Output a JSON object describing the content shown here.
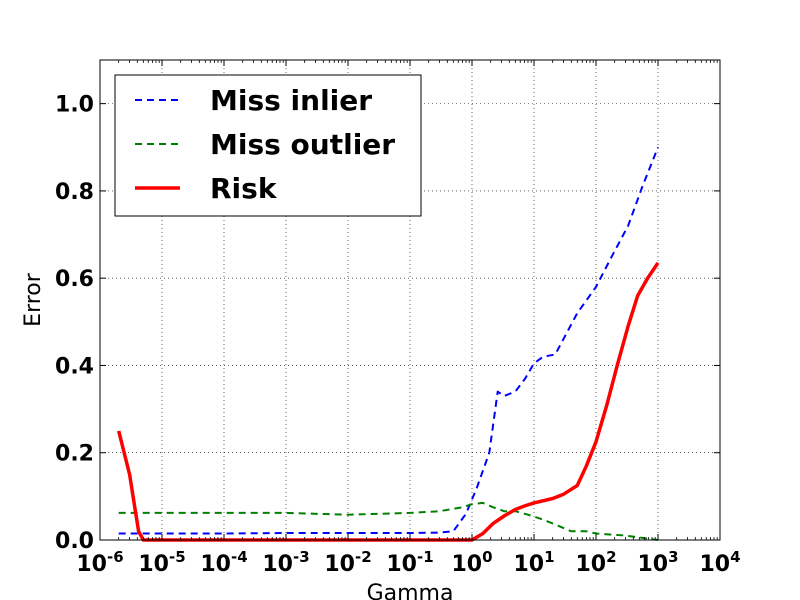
{
  "chart_data": {
    "type": "line",
    "title": "",
    "xlabel": "Gamma",
    "ylabel": "Error",
    "xscale": "log",
    "xlim": [
      1e-06,
      10000.0
    ],
    "ylim": [
      0.0,
      1.1
    ],
    "x_ticks": [
      {
        "base": "10",
        "exp": "-6",
        "value": 1e-06
      },
      {
        "base": "10",
        "exp": "-5",
        "value": 1e-05
      },
      {
        "base": "10",
        "exp": "-4",
        "value": 0.0001
      },
      {
        "base": "10",
        "exp": "-3",
        "value": 0.001
      },
      {
        "base": "10",
        "exp": "-2",
        "value": 0.01
      },
      {
        "base": "10",
        "exp": "-1",
        "value": 0.1
      },
      {
        "base": "10",
        "exp": "0",
        "value": 1
      },
      {
        "base": "10",
        "exp": "1",
        "value": 10
      },
      {
        "base": "10",
        "exp": "2",
        "value": 100
      },
      {
        "base": "10",
        "exp": "3",
        "value": 1000
      },
      {
        "base": "10",
        "exp": "4",
        "value": 10000
      }
    ],
    "y_ticks": [
      {
        "label": "0.0",
        "value": 0.0
      },
      {
        "label": "0.2",
        "value": 0.2
      },
      {
        "label": "0.4",
        "value": 0.4
      },
      {
        "label": "0.6",
        "value": 0.6
      },
      {
        "label": "0.8",
        "value": 0.8
      },
      {
        "label": "1.0",
        "value": 1.0
      }
    ],
    "grid": true,
    "legend_position": "top-left",
    "series": [
      {
        "name": "Miss inlier",
        "color": "#0000ff",
        "style": "dashed",
        "x": [
          2e-06,
          3.7e-06,
          1e-05,
          0.0001,
          0.001,
          0.01,
          0.1,
          0.3,
          0.5,
          0.8,
          1.2,
          1.9,
          2.6,
          3.3,
          5,
          7.2,
          10,
          14,
          22,
          50,
          100,
          180,
          330,
          560,
          1000
        ],
        "y": [
          0.015,
          0.015,
          0.015,
          0.015,
          0.016,
          0.016,
          0.016,
          0.017,
          0.02,
          0.06,
          0.12,
          0.2,
          0.34,
          0.33,
          0.34,
          0.37,
          0.405,
          0.42,
          0.425,
          0.52,
          0.58,
          0.65,
          0.72,
          0.81,
          0.9
        ]
      },
      {
        "name": "Miss outlier",
        "color": "#008000",
        "style": "dashed",
        "x": [
          2e-06,
          1e-05,
          0.0001,
          0.001,
          0.01,
          0.1,
          0.3,
          0.7,
          1.0,
          1.5,
          2.2,
          3.3,
          5,
          8,
          12,
          20,
          40,
          70,
          100,
          300,
          1000
        ],
        "y": [
          0.062,
          0.062,
          0.062,
          0.062,
          0.058,
          0.062,
          0.066,
          0.075,
          0.082,
          0.085,
          0.075,
          0.066,
          0.066,
          0.058,
          0.05,
          0.038,
          0.02,
          0.02,
          0.015,
          0.01,
          0.0
        ]
      },
      {
        "name": "Risk",
        "color": "#ff0000",
        "style": "solid",
        "x": [
          2e-06,
          3e-06,
          4.2e-06,
          5e-06,
          1e-05,
          0.0001,
          0.001,
          0.01,
          0.1,
          0.5,
          1.0,
          1.5,
          2.2,
          3.3,
          5,
          7,
          10,
          20,
          30,
          50,
          70,
          100,
          150,
          220,
          330,
          470,
          680,
          1000
        ],
        "y": [
          0.25,
          0.15,
          0.02,
          0.0,
          0.0,
          0.0,
          0.0,
          0.0,
          0.0,
          0.0,
          0.0,
          0.015,
          0.038,
          0.055,
          0.07,
          0.078,
          0.085,
          0.095,
          0.105,
          0.125,
          0.17,
          0.225,
          0.31,
          0.4,
          0.49,
          0.56,
          0.6,
          0.635
        ]
      }
    ]
  }
}
